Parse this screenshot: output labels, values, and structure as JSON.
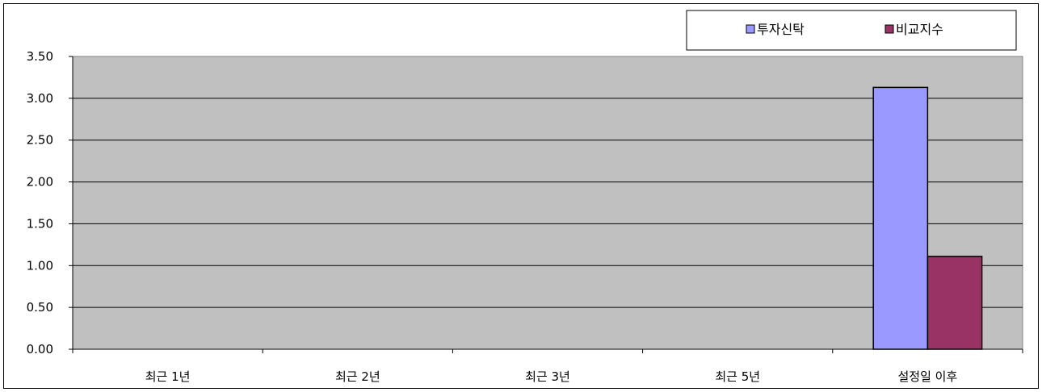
{
  "chart_data": {
    "type": "bar",
    "categories": [
      "최근 1년",
      "최근 2년",
      "최근 3년",
      "최근 5년",
      "설정일 이후"
    ],
    "series": [
      {
        "name": "투자신탁",
        "color": "#9999ff",
        "values": [
          null,
          null,
          null,
          null,
          3.13
        ]
      },
      {
        "name": "비교지수",
        "color": "#993366",
        "values": [
          null,
          null,
          null,
          null,
          1.11
        ]
      }
    ],
    "ylim": [
      0,
      3.5
    ],
    "yticks": [
      "0.00",
      "0.50",
      "1.00",
      "1.50",
      "2.00",
      "2.50",
      "3.00",
      "3.50"
    ],
    "ytick_values": [
      0,
      0.5,
      1.0,
      1.5,
      2.0,
      2.5,
      3.0,
      3.5
    ],
    "grid": true,
    "plot_background": "#c0c0c0",
    "legend_position": "top-right"
  }
}
